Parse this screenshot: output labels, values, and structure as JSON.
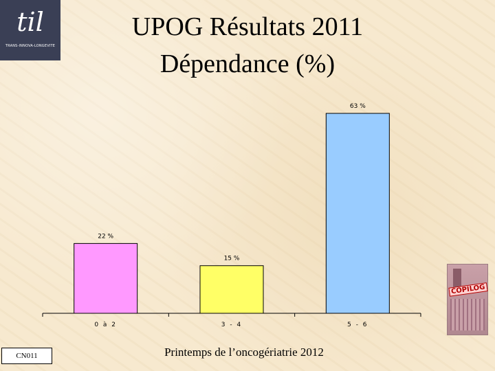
{
  "logo": {
    "mark": "til",
    "subtitle": "TRANS-INNOVA-LONGEVITE"
  },
  "title": {
    "line1": "UPOG Résultats 2011",
    "line2": "Dépendance (%)"
  },
  "chart_data": {
    "type": "bar",
    "categories": [
      "0 à 2",
      "3 - 4",
      "5 - 6"
    ],
    "values": [
      22,
      15,
      63
    ],
    "data_labels": [
      "22 %",
      "15 %",
      "63 %"
    ],
    "colors": [
      "#ff99ff",
      "#ffff66",
      "#99ccff"
    ],
    "ylim": [
      0,
      63
    ],
    "grid": false,
    "legend": "none"
  },
  "footer": {
    "code": "CN011",
    "text": "Printemps de l’oncogériatrie 2012"
  },
  "badge": {
    "label": "COPILOG"
  }
}
